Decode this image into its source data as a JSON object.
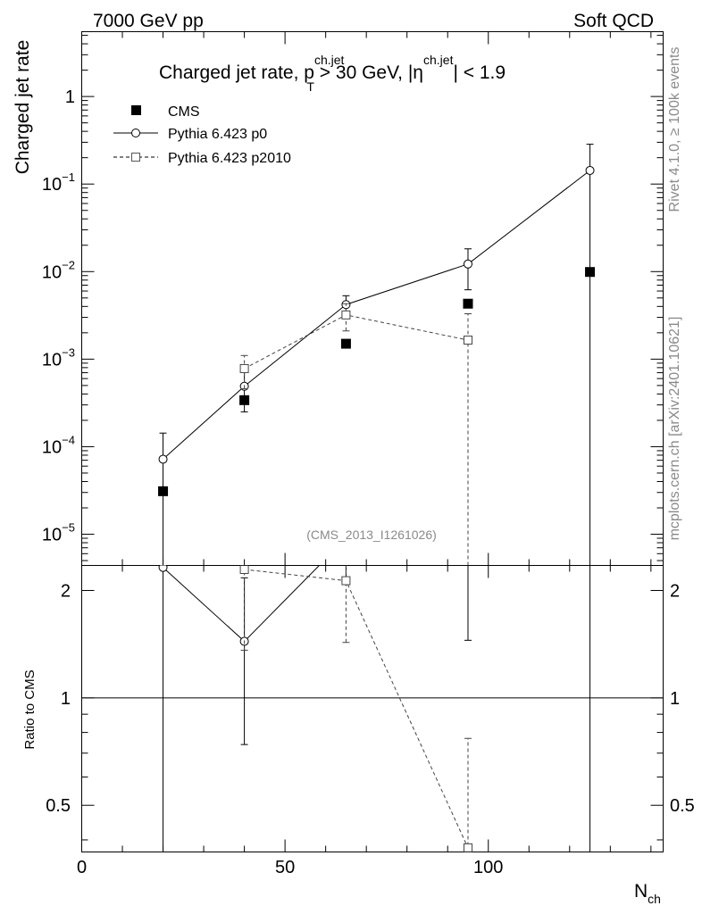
{
  "header": {
    "energy": "7000 GeV pp",
    "category": "Soft QCD"
  },
  "side_labels": {
    "rivet": "Rivet 4.1.0, ≥ 100k events",
    "mcplots": "mcplots.cern.ch [arXiv:2401.10621]"
  },
  "title": {
    "prefix": "Charged jet rate, p",
    "pt_sub": "T",
    "pt_sup": "ch.jet",
    "middle": " > 30 GeV,  |η",
    "eta_sup": "ch.jet",
    "suffix": "| < 1.9"
  },
  "analysis_id": "(CMS_2013_I1261026)",
  "legend": {
    "placement": "top-left",
    "entries": [
      "CMS",
      "Pythia 6.423 p0",
      "Pythia 6.423 p2010"
    ]
  },
  "axes": {
    "ylabel_main": "Charged jet rate",
    "ylabel_ratio": "Ratio to CMS",
    "xlabel": "N",
    "xlabel_sub": "ch",
    "main_yticks": [
      {
        "value": 1,
        "mant": "1",
        "exp": ""
      },
      {
        "value": 0.1,
        "mant": "10",
        "exp": "−1"
      },
      {
        "value": 0.01,
        "mant": "10",
        "exp": "−2"
      },
      {
        "value": 0.001,
        "mant": "10",
        "exp": "−3"
      },
      {
        "value": 0.0001,
        "mant": "10",
        "exp": "−4"
      },
      {
        "value": 1e-05,
        "mant": "10",
        "exp": "−5"
      }
    ],
    "ratio_yticks": [
      {
        "value": 2,
        "label": "2"
      },
      {
        "value": 1,
        "label": "1"
      },
      {
        "value": 0.5,
        "label": "0.5"
      }
    ],
    "xticks": [
      {
        "value": 0,
        "label": "0"
      },
      {
        "value": 50,
        "label": "50"
      },
      {
        "value": 100,
        "label": "100"
      }
    ]
  },
  "chart_data": {
    "type": "scatter",
    "xlim": [
      0,
      143
    ],
    "ylim_main": [
      4.4e-06,
      5.5
    ],
    "ylim_ratio": [
      0.37,
      2.35
    ],
    "yscale": "log",
    "series": [
      {
        "name": "CMS",
        "marker": "filled-square",
        "line": "none",
        "points": [
          {
            "x": 20,
            "y": 3.1e-05
          },
          {
            "x": 40,
            "y": 0.00034
          },
          {
            "x": 65,
            "y": 0.0015
          },
          {
            "x": 95,
            "y": 0.0043
          },
          {
            "x": 125,
            "y": 0.0099
          }
        ]
      },
      {
        "name": "Pythia 6.423 p0",
        "marker": "open-circle",
        "line": "solid",
        "points": [
          {
            "x": 20,
            "y": 7.2e-05,
            "lo": 1e-07,
            "hi": 0.000143
          },
          {
            "x": 40,
            "y": 0.00049,
            "lo": 0.00025,
            "hi": 0.00074
          },
          {
            "x": 65,
            "y": 0.0042,
            "lo": 0.0031,
            "hi": 0.0053
          },
          {
            "x": 95,
            "y": 0.0122,
            "lo": 0.0062,
            "hi": 0.0182
          },
          {
            "x": 125,
            "y": 0.143,
            "lo": 1e-07,
            "hi": 0.285
          }
        ]
      },
      {
        "name": "Pythia 6.423 p2010",
        "marker": "open-square",
        "line": "dashed",
        "points": [
          {
            "x": 40,
            "y": 0.00078,
            "lo": 0.00046,
            "hi": 0.0011
          },
          {
            "x": 65,
            "y": 0.0032,
            "lo": 0.0021,
            "hi": 0.0043
          },
          {
            "x": 95,
            "y": 0.00165,
            "lo": 1e-07,
            "hi": 0.0033
          }
        ]
      }
    ],
    "ratio_series": [
      {
        "name": "Pythia 6.423 p0 / CMS",
        "line": "solid",
        "marker": "open-circle",
        "points": [
          {
            "x": 20,
            "y": 2.32,
            "lo": 0.3,
            "hi": 3.0
          },
          {
            "x": 40,
            "y": 1.44,
            "lo": 0.74,
            "hi": 2.17
          },
          {
            "x": 65,
            "y": 2.8,
            "lo": 2.1,
            "hi": 3.5
          },
          {
            "x": 95,
            "y": 2.84,
            "lo": 1.45,
            "hi": 4.2
          },
          {
            "x": 125,
            "y": 14.4,
            "lo": 0.3,
            "hi": 28.8
          }
        ]
      },
      {
        "name": "Pythia 6.423 p2010 / CMS",
        "line": "dashed",
        "marker": "open-square",
        "points": [
          {
            "x": 40,
            "y": 2.29,
            "lo": 1.36,
            "hi": 3.2
          },
          {
            "x": 65,
            "y": 2.13,
            "lo": 1.43,
            "hi": 2.86
          },
          {
            "x": 95,
            "y": 0.38,
            "lo": 0.3,
            "hi": 0.77
          }
        ]
      }
    ],
    "reference_line": {
      "y": 1
    }
  }
}
